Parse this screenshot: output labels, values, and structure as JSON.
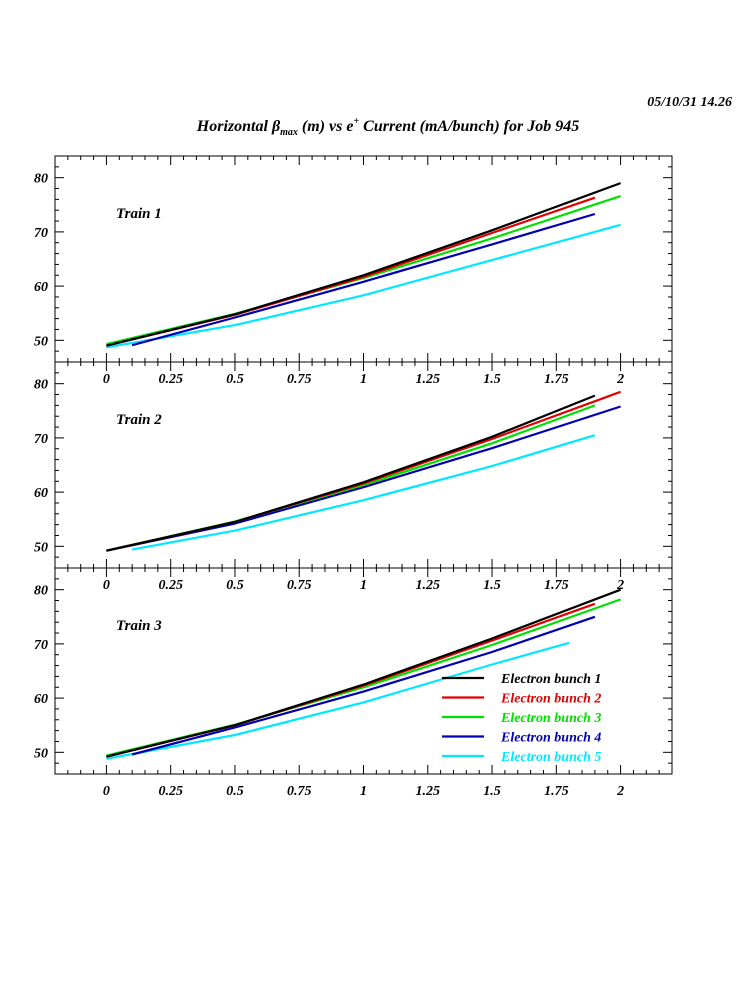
{
  "timestamp": "05/10/31   14.26",
  "title": {
    "pre": "Horizontal ",
    "beta": "β",
    "beta_sub": "max",
    "mid": " (m) vs e",
    "sup": "+",
    "post": " Current (mA/bunch) for Job 945"
  },
  "chart_data": {
    "type": "line",
    "xlim": [
      -0.2,
      2.2
    ],
    "ylim": [
      46,
      84
    ],
    "x_ticks": [
      "0",
      "0.25",
      "0.5",
      "0.75",
      "1",
      "1.25",
      "1.5",
      "1.75",
      "2"
    ],
    "y_ticks": [
      "50",
      "60",
      "70",
      "80"
    ],
    "legend_placement": "bottom-right",
    "legend": [
      {
        "label": "Electron bunch 1",
        "color": "#000000"
      },
      {
        "label": "Electron bunch 2",
        "color": "#e00000"
      },
      {
        "label": "Electron bunch 3",
        "color": "#00e000"
      },
      {
        "label": "Electron bunch 4",
        "color": "#0000b0"
      },
      {
        "label": "Electron bunch 5",
        "color": "#00e8ff"
      }
    ],
    "panels": [
      {
        "label": "Train 1",
        "series": [
          {
            "x": [
              0.0,
              0.5,
              1.0,
              1.5,
              2.0
            ],
            "y": [
              49.0,
              54.8,
              62.0,
              70.3,
              79.0
            ]
          },
          {
            "x": [
              0.0,
              0.5,
              1.0,
              1.5,
              1.9
            ],
            "y": [
              49.0,
              54.7,
              61.7,
              69.8,
              76.3
            ]
          },
          {
            "x": [
              0.0,
              0.5,
              1.0,
              1.5,
              2.0
            ],
            "y": [
              49.3,
              54.9,
              61.5,
              68.8,
              76.6
            ]
          },
          {
            "x": [
              0.1,
              0.5,
              1.0,
              1.5,
              1.9
            ],
            "y": [
              49.1,
              54.2,
              60.8,
              67.7,
              73.3
            ]
          },
          {
            "x": [
              0.0,
              0.5,
              1.0,
              1.5,
              2.0
            ],
            "y": [
              48.7,
              52.8,
              58.3,
              64.8,
              71.3
            ]
          }
        ]
      },
      {
        "label": "Train 2",
        "series": [
          {
            "x": [
              0.0,
              0.5,
              1.0,
              1.5,
              1.9
            ],
            "y": [
              49.2,
              54.5,
              61.8,
              70.2,
              77.8
            ]
          },
          {
            "x": [
              0.0,
              0.5,
              1.0,
              1.5,
              2.0
            ],
            "y": [
              49.2,
              54.5,
              61.6,
              69.8,
              78.5
            ]
          },
          {
            "x": [
              0.0,
              0.5,
              1.0,
              1.5,
              1.9
            ],
            "y": [
              49.2,
              54.6,
              61.3,
              69.0,
              76.0
            ]
          },
          {
            "x": [
              0.0,
              0.5,
              1.0,
              1.5,
              2.0
            ],
            "y": [
              49.2,
              54.2,
              60.9,
              68.1,
              75.8
            ]
          },
          {
            "x": [
              0.1,
              0.5,
              1.0,
              1.5,
              1.9
            ],
            "y": [
              49.4,
              52.9,
              58.5,
              64.8,
              70.5
            ]
          }
        ]
      },
      {
        "label": "Train 3",
        "series": [
          {
            "x": [
              0.0,
              0.5,
              1.0,
              1.5,
              2.0
            ],
            "y": [
              49.2,
              55.0,
              62.5,
              71.0,
              80.0
            ]
          },
          {
            "x": [
              0.0,
              0.5,
              1.0,
              1.5,
              1.9
            ],
            "y": [
              49.2,
              55.0,
              62.3,
              70.6,
              77.4
            ]
          },
          {
            "x": [
              0.0,
              0.5,
              1.0,
              1.5,
              2.0
            ],
            "y": [
              49.4,
              55.1,
              62.0,
              69.8,
              78.2
            ]
          },
          {
            "x": [
              0.1,
              0.5,
              1.0,
              1.5,
              1.9
            ],
            "y": [
              49.6,
              54.6,
              61.2,
              68.5,
              75.0
            ]
          },
          {
            "x": [
              0.0,
              0.5,
              1.0,
              1.5,
              1.8
            ],
            "y": [
              48.8,
              53.2,
              59.2,
              66.2,
              70.2
            ]
          }
        ]
      }
    ]
  }
}
